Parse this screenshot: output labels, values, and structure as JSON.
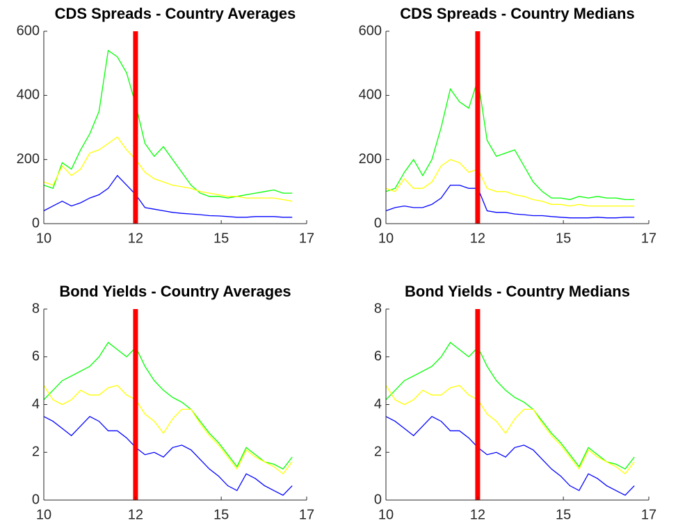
{
  "chart_data": [
    {
      "type": "line",
      "title": "CDS Spreads - Country Averages",
      "x": [
        0,
        35,
        70,
        105,
        140,
        175,
        210,
        245,
        280,
        315,
        350,
        385,
        420,
        455,
        490,
        525,
        560,
        595,
        630,
        665,
        700,
        735,
        770,
        805,
        840,
        875,
        910,
        945
      ],
      "xlim": [
        0,
        1000
      ],
      "xticks": [
        {
          "value": 0,
          "label": "10"
        },
        {
          "value": 349,
          "label": "12"
        },
        {
          "value": 675,
          "label": "15"
        },
        {
          "value": 1000,
          "label": "17"
        }
      ],
      "ylim": [
        0,
        600
      ],
      "yticks": [
        0,
        200,
        400,
        600
      ],
      "vlines": [
        {
          "x": 349,
          "color": "#ff0000"
        }
      ],
      "series": [
        {
          "color": "#00ff00",
          "values": [
            120,
            110,
            190,
            170,
            230,
            280,
            350,
            540,
            520,
            470,
            370,
            250,
            210,
            240,
            200,
            160,
            120,
            95,
            85,
            85,
            80,
            85,
            90,
            95,
            100,
            105,
            95,
            95
          ]
        },
        {
          "color": "#ffff00",
          "values": [
            130,
            120,
            180,
            150,
            170,
            220,
            230,
            250,
            270,
            230,
            200,
            160,
            140,
            130,
            120,
            115,
            110,
            100,
            95,
            90,
            85,
            85,
            80,
            80,
            80,
            80,
            75,
            70
          ]
        },
        {
          "color": "#0000ff",
          "values": [
            40,
            55,
            70,
            55,
            65,
            80,
            90,
            110,
            150,
            120,
            90,
            50,
            45,
            40,
            35,
            32,
            30,
            28,
            25,
            24,
            22,
            20,
            20,
            22,
            22,
            22,
            20,
            20
          ]
        }
      ]
    },
    {
      "type": "line",
      "title": "CDS Spreads - Country Medians",
      "x": [
        0,
        35,
        70,
        105,
        140,
        175,
        210,
        245,
        280,
        315,
        350,
        385,
        420,
        455,
        490,
        525,
        560,
        595,
        630,
        665,
        700,
        735,
        770,
        805,
        840,
        875,
        910,
        945
      ],
      "xlim": [
        0,
        1000
      ],
      "xticks": [
        {
          "value": 0,
          "label": "10"
        },
        {
          "value": 349,
          "label": "12"
        },
        {
          "value": 675,
          "label": "15"
        },
        {
          "value": 1000,
          "label": "17"
        }
      ],
      "ylim": [
        0,
        600
      ],
      "yticks": [
        0,
        200,
        400,
        600
      ],
      "vlines": [
        {
          "x": 349,
          "color": "#ff0000"
        }
      ],
      "series": [
        {
          "color": "#00ff00",
          "values": [
            100,
            110,
            160,
            200,
            150,
            200,
            300,
            420,
            380,
            360,
            450,
            260,
            210,
            220,
            230,
            180,
            130,
            100,
            80,
            80,
            75,
            85,
            80,
            85,
            80,
            80,
            75,
            75
          ]
        },
        {
          "color": "#ffff00",
          "values": [
            110,
            100,
            140,
            110,
            110,
            130,
            180,
            200,
            190,
            160,
            170,
            110,
            100,
            100,
            90,
            85,
            75,
            70,
            60,
            60,
            55,
            60,
            55,
            55,
            55,
            55,
            55,
            55
          ]
        },
        {
          "color": "#0000ff",
          "values": [
            40,
            50,
            55,
            50,
            50,
            60,
            80,
            120,
            120,
            110,
            110,
            40,
            35,
            35,
            30,
            28,
            25,
            25,
            22,
            20,
            18,
            18,
            18,
            20,
            18,
            18,
            20,
            20
          ]
        }
      ]
    },
    {
      "type": "line",
      "title": "Bond Yields - Country Averages",
      "x": [
        0,
        35,
        70,
        105,
        140,
        175,
        210,
        245,
        280,
        315,
        350,
        385,
        420,
        455,
        490,
        525,
        560,
        595,
        630,
        665,
        700,
        735,
        770,
        805,
        840,
        875,
        910,
        945
      ],
      "xlim": [
        0,
        1000
      ],
      "xticks": [
        {
          "value": 0,
          "label": "10"
        },
        {
          "value": 349,
          "label": "12"
        },
        {
          "value": 675,
          "label": "15"
        },
        {
          "value": 1000,
          "label": "17"
        }
      ],
      "ylim": [
        0,
        8
      ],
      "yticks": [
        0,
        2,
        4,
        6,
        8
      ],
      "vlines": [
        {
          "x": 349,
          "color": "#ff0000"
        }
      ],
      "series": [
        {
          "color": "#00ff00",
          "values": [
            4.2,
            4.6,
            5.0,
            5.2,
            5.4,
            5.6,
            6.0,
            6.6,
            6.3,
            6.0,
            6.4,
            5.6,
            5.0,
            4.6,
            4.3,
            4.1,
            3.8,
            3.3,
            2.8,
            2.4,
            1.9,
            1.4,
            2.2,
            1.9,
            1.6,
            1.5,
            1.3,
            1.8
          ]
        },
        {
          "color": "#ffff00",
          "values": [
            4.8,
            4.2,
            4.0,
            4.2,
            4.6,
            4.4,
            4.4,
            4.7,
            4.8,
            4.4,
            4.2,
            3.6,
            3.3,
            2.8,
            3.4,
            3.8,
            3.8,
            3.2,
            2.7,
            2.3,
            1.8,
            1.3,
            2.1,
            1.8,
            1.6,
            1.4,
            1.1,
            1.6
          ]
        },
        {
          "color": "#0000ff",
          "values": [
            3.5,
            3.3,
            3.0,
            2.7,
            3.1,
            3.5,
            3.3,
            2.9,
            2.9,
            2.6,
            2.2,
            1.9,
            2.0,
            1.8,
            2.2,
            2.3,
            2.1,
            1.7,
            1.3,
            1.0,
            0.6,
            0.4,
            1.1,
            0.9,
            0.6,
            0.4,
            0.2,
            0.6
          ]
        }
      ]
    },
    {
      "type": "line",
      "title": "Bond Yields - Country Medians",
      "x": [
        0,
        35,
        70,
        105,
        140,
        175,
        210,
        245,
        280,
        315,
        350,
        385,
        420,
        455,
        490,
        525,
        560,
        595,
        630,
        665,
        700,
        735,
        770,
        805,
        840,
        875,
        910,
        945
      ],
      "xlim": [
        0,
        1000
      ],
      "xticks": [
        {
          "value": 0,
          "label": "10"
        },
        {
          "value": 349,
          "label": "12"
        },
        {
          "value": 675,
          "label": "15"
        },
        {
          "value": 1000,
          "label": "17"
        }
      ],
      "ylim": [
        0,
        8
      ],
      "yticks": [
        0,
        2,
        4,
        6,
        8
      ],
      "vlines": [
        {
          "x": 349,
          "color": "#ff0000"
        }
      ],
      "series": [
        {
          "color": "#00ff00",
          "values": [
            4.2,
            4.6,
            5.0,
            5.2,
            5.4,
            5.6,
            6.0,
            6.6,
            6.3,
            6.0,
            6.4,
            5.6,
            5.0,
            4.6,
            4.3,
            4.1,
            3.8,
            3.3,
            2.8,
            2.4,
            1.9,
            1.4,
            2.2,
            1.9,
            1.6,
            1.5,
            1.3,
            1.8
          ]
        },
        {
          "color": "#ffff00",
          "values": [
            4.8,
            4.2,
            4.0,
            4.2,
            4.6,
            4.4,
            4.4,
            4.7,
            4.8,
            4.4,
            4.2,
            3.6,
            3.3,
            2.8,
            3.4,
            3.8,
            3.8,
            3.2,
            2.7,
            2.3,
            1.8,
            1.3,
            2.1,
            1.8,
            1.6,
            1.4,
            1.1,
            1.6
          ]
        },
        {
          "color": "#0000ff",
          "values": [
            3.5,
            3.3,
            3.0,
            2.7,
            3.1,
            3.5,
            3.3,
            2.9,
            2.9,
            2.6,
            2.2,
            1.9,
            2.0,
            1.8,
            2.2,
            2.3,
            2.1,
            1.7,
            1.3,
            1.0,
            0.6,
            0.4,
            1.1,
            0.9,
            0.6,
            0.4,
            0.2,
            0.6
          ]
        }
      ]
    }
  ]
}
